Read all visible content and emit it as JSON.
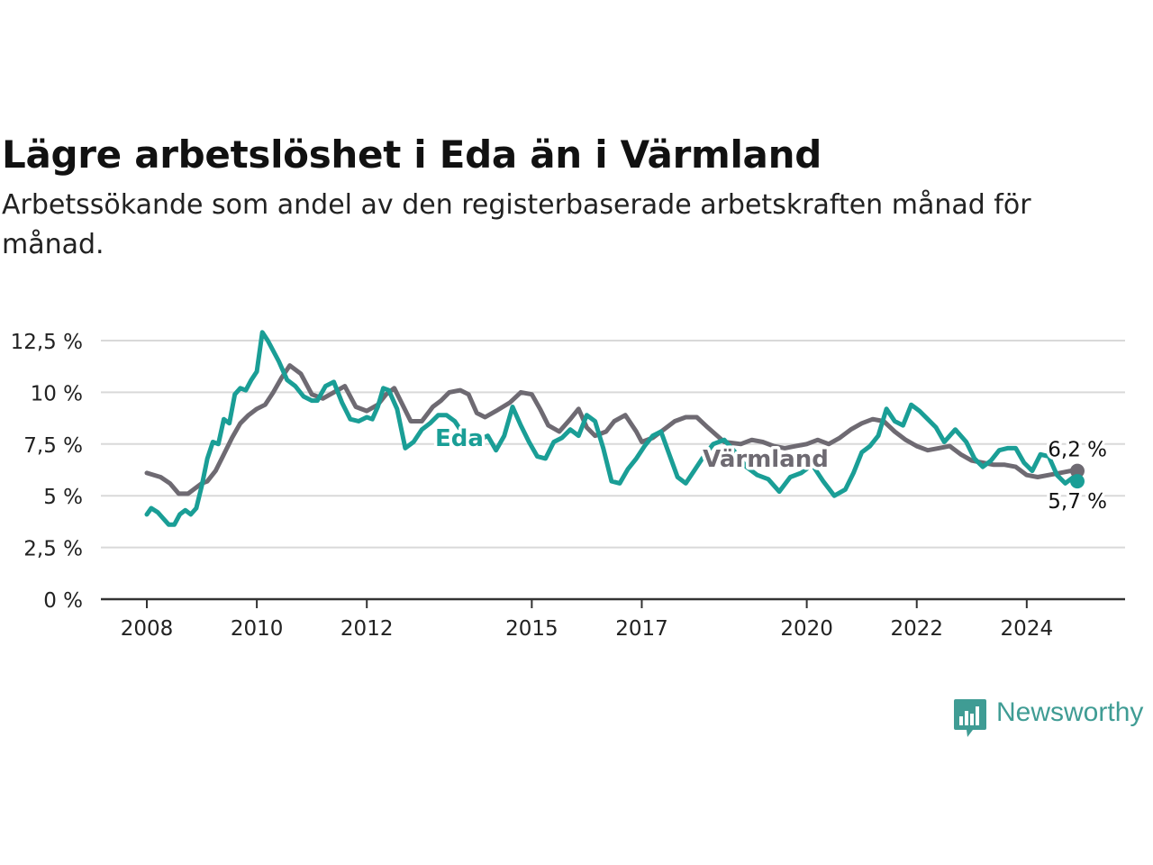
{
  "title": "Lägre arbetslöshet i Eda än i Värmland",
  "subtitle": "Arbetssökande som andel av den registerbaserade arbetskraften månad för månad.",
  "brand": {
    "name": "Newsworthy",
    "color": "#3f9c94",
    "icon": "newsworthy-chart-bubble-icon"
  },
  "chart_data": {
    "type": "line",
    "x_tick_labels": [
      "2008",
      "2010",
      "2012",
      "2015",
      "2017",
      "2020",
      "2022",
      "2024"
    ],
    "x_tick_years": [
      2008,
      2010,
      2012,
      2015,
      2017,
      2020,
      2022,
      2024
    ],
    "y_tick_labels": [
      "0 %",
      "2,5 %",
      "5 %",
      "7,5 %",
      "10 %",
      "12,5 %"
    ],
    "y_tick_values": [
      0,
      2.5,
      5,
      7.5,
      10,
      12.5
    ],
    "ylim": [
      0,
      12.5
    ],
    "xlim": [
      2008.0,
      2024.92
    ],
    "grid": true,
    "series": [
      {
        "name": "Värmland",
        "color": "#6e6a72",
        "end_label": "6,2 %",
        "x": [
          2008.0,
          2008.25,
          2008.42,
          2008.58,
          2008.75,
          2008.9,
          2009.0,
          2009.1,
          2009.25,
          2009.4,
          2009.55,
          2009.7,
          2009.85,
          2010.0,
          2010.15,
          2010.3,
          2010.45,
          2010.6,
          2010.8,
          2011.0,
          2011.2,
          2011.4,
          2011.6,
          2011.8,
          2012.0,
          2012.2,
          2012.35,
          2012.5,
          2012.8,
          2013.0,
          2013.2,
          2013.35,
          2013.5,
          2013.7,
          2013.85,
          2014.0,
          2014.15,
          2014.35,
          2014.6,
          2014.8,
          2015.0,
          2015.15,
          2015.3,
          2015.5,
          2015.7,
          2015.85,
          2016.0,
          2016.15,
          2016.35,
          2016.5,
          2016.7,
          2016.9,
          2017.0,
          2017.2,
          2017.4,
          2017.6,
          2017.8,
          2018.0,
          2018.2,
          2018.5,
          2018.8,
          2019.0,
          2019.2,
          2019.4,
          2019.6,
          2019.8,
          2020.0,
          2020.2,
          2020.4,
          2020.6,
          2020.8,
          2021.0,
          2021.2,
          2021.4,
          2021.6,
          2021.8,
          2022.0,
          2022.2,
          2022.4,
          2022.6,
          2022.8,
          2023.0,
          2023.2,
          2023.4,
          2023.6,
          2023.8,
          2024.0,
          2024.2,
          2024.4,
          2024.6,
          2024.8,
          2024.92
        ],
        "y": [
          6.1,
          5.9,
          5.6,
          5.1,
          5.1,
          5.4,
          5.6,
          5.7,
          6.2,
          7.0,
          7.8,
          8.5,
          8.9,
          9.2,
          9.4,
          10.0,
          10.7,
          11.3,
          10.9,
          9.9,
          9.7,
          10.0,
          10.3,
          9.3,
          9.1,
          9.4,
          9.9,
          10.2,
          8.6,
          8.6,
          9.3,
          9.6,
          10.0,
          10.1,
          9.9,
          9.0,
          8.8,
          9.1,
          9.5,
          10.0,
          9.9,
          9.2,
          8.4,
          8.1,
          8.7,
          9.2,
          8.3,
          7.9,
          8.1,
          8.6,
          8.9,
          8.1,
          7.6,
          7.8,
          8.2,
          8.6,
          8.8,
          8.8,
          8.3,
          7.6,
          7.5,
          7.7,
          7.6,
          7.4,
          7.3,
          7.4,
          7.5,
          7.7,
          7.5,
          7.8,
          8.2,
          8.5,
          8.7,
          8.6,
          8.1,
          7.7,
          7.4,
          7.2,
          7.3,
          7.4,
          7.0,
          6.7,
          6.6,
          6.5,
          6.5,
          6.4,
          6.0,
          5.9,
          6.0,
          6.1,
          6.2,
          6.2
        ]
      },
      {
        "name": "Eda",
        "color": "#1a9e96",
        "end_label": "5,7 %",
        "x": [
          2008.0,
          2008.08,
          2008.2,
          2008.3,
          2008.4,
          2008.5,
          2008.6,
          2008.7,
          2008.8,
          2008.9,
          2009.0,
          2009.1,
          2009.2,
          2009.3,
          2009.4,
          2009.5,
          2009.6,
          2009.7,
          2009.8,
          2009.9,
          2010.0,
          2010.1,
          2010.2,
          2010.3,
          2010.4,
          2010.55,
          2010.7,
          2010.85,
          2011.0,
          2011.1,
          2011.25,
          2011.4,
          2011.55,
          2011.7,
          2011.85,
          2012.0,
          2012.1,
          2012.2,
          2012.3,
          2012.4,
          2012.55,
          2012.7,
          2012.85,
          2013.0,
          2013.15,
          2013.3,
          2013.45,
          2013.6,
          2013.75,
          2013.9,
          2014.05,
          2014.2,
          2014.35,
          2014.5,
          2014.65,
          2014.8,
          2014.95,
          2015.1,
          2015.25,
          2015.4,
          2015.55,
          2015.7,
          2015.85,
          2016.0,
          2016.15,
          2016.3,
          2016.45,
          2016.6,
          2016.75,
          2016.9,
          2017.05,
          2017.2,
          2017.35,
          2017.5,
          2017.65,
          2017.8,
          2017.95,
          2018.1,
          2018.3,
          2018.5,
          2018.7,
          2018.9,
          2019.1,
          2019.3,
          2019.5,
          2019.7,
          2019.9,
          2020.1,
          2020.3,
          2020.5,
          2020.7,
          2020.85,
          2021.0,
          2021.15,
          2021.3,
          2021.45,
          2021.6,
          2021.75,
          2021.9,
          2022.05,
          2022.2,
          2022.35,
          2022.5,
          2022.7,
          2022.9,
          2023.05,
          2023.2,
          2023.35,
          2023.5,
          2023.65,
          2023.8,
          2023.95,
          2024.1,
          2024.25,
          2024.4,
          2024.55,
          2024.7,
          2024.85,
          2024.92
        ],
        "y": [
          4.1,
          4.4,
          4.2,
          3.9,
          3.6,
          3.6,
          4.1,
          4.3,
          4.1,
          4.4,
          5.5,
          6.8,
          7.6,
          7.5,
          8.7,
          8.5,
          9.9,
          10.2,
          10.1,
          10.6,
          11.0,
          12.9,
          12.5,
          12.0,
          11.5,
          10.6,
          10.3,
          9.8,
          9.6,
          9.6,
          10.3,
          10.5,
          9.5,
          8.7,
          8.6,
          8.8,
          8.7,
          9.3,
          10.2,
          10.1,
          9.2,
          7.3,
          7.6,
          8.2,
          8.5,
          8.9,
          8.9,
          8.6,
          8.0,
          7.5,
          7.7,
          7.9,
          7.2,
          7.9,
          9.3,
          8.4,
          7.6,
          6.9,
          6.8,
          7.6,
          7.8,
          8.2,
          7.9,
          8.9,
          8.6,
          7.3,
          5.7,
          5.6,
          6.3,
          6.8,
          7.4,
          7.9,
          8.1,
          7.0,
          5.9,
          5.6,
          6.2,
          6.8,
          7.5,
          7.7,
          7.1,
          6.4,
          6.0,
          5.8,
          5.2,
          5.9,
          6.1,
          6.5,
          5.7,
          5.0,
          5.3,
          6.1,
          7.1,
          7.4,
          7.9,
          9.2,
          8.6,
          8.4,
          9.4,
          9.1,
          8.7,
          8.3,
          7.6,
          8.2,
          7.6,
          6.8,
          6.4,
          6.7,
          7.2,
          7.3,
          7.3,
          6.6,
          6.2,
          7.0,
          6.9,
          6.0,
          5.6,
          5.9,
          5.7
        ]
      }
    ]
  }
}
